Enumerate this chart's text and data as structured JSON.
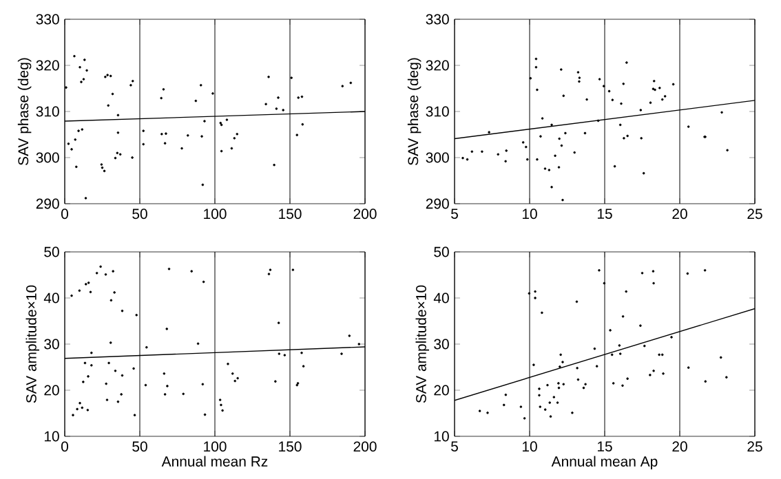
{
  "chart_data": [
    {
      "type": "scatter",
      "ylabel": "SAV phase (deg)",
      "xlim": [
        0,
        200
      ],
      "ylim": [
        290,
        330
      ],
      "xticks": [
        0,
        50,
        100,
        150,
        200
      ],
      "yticks": [
        290,
        300,
        310,
        320,
        330
      ],
      "grid": "x",
      "series": [
        {
          "color": "#000000",
          "marker": "circle",
          "x": [
            0.9,
            2.5,
            4.6,
            6.4,
            7.0,
            7.7,
            9.2,
            10.1,
            11,
            11.6,
            12.6,
            13.2,
            14,
            14.7,
            24.5,
            25,
            26.4,
            27,
            28.5,
            29,
            30.6,
            31.9,
            33.7,
            35,
            35.5,
            35.5,
            37,
            44,
            45.3,
            45,
            52.4,
            52.4,
            64.3,
            65.8,
            64.6,
            67.4,
            66.8,
            78,
            82,
            87.3,
            90.7,
            91.3,
            91.9,
            93.1,
            98.6,
            103.8,
            104.4,
            104.4,
            108,
            111.2,
            113,
            114.8,
            134,
            135.8,
            139.5,
            141,
            142.2,
            145.5,
            151,
            154.7,
            155.6,
            158,
            158.4,
            185,
            190.5
          ],
          "values": [
            315.2,
            303,
            301.8,
            322,
            303.9,
            298,
            305.8,
            319.6,
            316.4,
            306.1,
            317,
            321.2,
            291.2,
            318.9,
            298.5,
            297.8,
            297.1,
            317.5,
            317.9,
            311.3,
            317.7,
            313.8,
            299.9,
            301,
            309.2,
            305.4,
            300.7,
            315.7,
            316.6,
            300,
            305.8,
            302.9,
            312.9,
            314.8,
            305.1,
            305.2,
            303.1,
            302,
            304.8,
            312.3,
            315.7,
            304.6,
            294.1,
            307.9,
            313.9,
            307.5,
            307.1,
            301.4,
            308.2,
            302,
            304.2,
            305.1,
            311.6,
            317.5,
            298.4,
            310.6,
            313,
            310.3,
            317.3,
            304.9,
            313,
            313.2,
            307.2,
            315.5,
            316.2
          ]
        },
        {
          "type": "line",
          "color": "#000000",
          "x": [
            0,
            200
          ],
          "values": [
            307.9,
            310
          ]
        }
      ]
    },
    {
      "type": "scatter",
      "ylabel": "SAV phase (deg)",
      "xlim": [
        5,
        25
      ],
      "ylim": [
        290,
        330
      ],
      "xticks": [
        5,
        10,
        15,
        20,
        25
      ],
      "yticks": [
        290,
        300,
        310,
        320,
        330
      ],
      "grid": "x",
      "series": [
        {
          "color": "#000000",
          "marker": "circle",
          "x": [
            5.55,
            5.85,
            6.16,
            6.83,
            7.3,
            7.9,
            8.45,
            8.4,
            9.57,
            9.76,
            9.85,
            10.06,
            10.43,
            10.43,
            10.5,
            10.5,
            10.73,
            10.85,
            11.03,
            11.3,
            11.47,
            11.47,
            11.7,
            11.95,
            11.98,
            12.1,
            12.13,
            12.2,
            12.26,
            12.38,
            12.99,
            13.23,
            13.3,
            13.32,
            13.69,
            13.81,
            14.66,
            14.94,
            14.57,
            15.3,
            15.52,
            15.67,
            16.04,
            16.1,
            16.25,
            16.28,
            16.46,
            16.52,
            17.4,
            17.44,
            17.6,
            18.05,
            18.23,
            18.29,
            18.35,
            18.66,
            18.84,
            19.02,
            19.57,
            20.58,
            21.65,
            21.7,
            22.8,
            23.17
          ],
          "values": [
            299.9,
            299.6,
            301.3,
            301.3,
            305.5,
            300.7,
            301.5,
            299.2,
            303.3,
            302.3,
            299.6,
            317.2,
            321.4,
            319.6,
            314.7,
            299.6,
            304.6,
            308.5,
            297.6,
            297.3,
            293.6,
            307.1,
            300.4,
            297.9,
            304.1,
            319.1,
            302.6,
            290.8,
            313.4,
            305.3,
            301.1,
            318.5,
            316.5,
            317.3,
            305.3,
            312.6,
            317,
            315.5,
            308,
            314.4,
            312.5,
            298.1,
            307.1,
            311.7,
            316,
            304.2,
            320.6,
            304.7,
            310.3,
            304.2,
            296.6,
            311.9,
            314.9,
            316.6,
            314.7,
            315.1,
            312.6,
            313.3,
            315.9,
            306.7,
            304.5,
            304.5,
            309.8,
            301.6
          ]
        },
        {
          "type": "line",
          "color": "#000000",
          "x": [
            5,
            25
          ],
          "values": [
            304.1,
            312.4
          ]
        }
      ]
    },
    {
      "type": "scatter",
      "xlabel": "Annual mean Rz",
      "ylabel": "SAV amplitude×10",
      "xlim": [
        0,
        200
      ],
      "ylim": [
        10,
        50
      ],
      "xticks": [
        0,
        50,
        100,
        150,
        200
      ],
      "yticks": [
        10,
        20,
        30,
        40,
        50
      ],
      "grid": "x",
      "series": [
        {
          "color": "#000000",
          "marker": "circle",
          "x": [
            4.6,
            5.5,
            8.3,
            9.8,
            10.1,
            11.6,
            12.3,
            13.5,
            14.1,
            15.3,
            15.6,
            15.9,
            17.2,
            17.8,
            17.8,
            21.4,
            23.9,
            27.3,
            27.6,
            28.2,
            29.4,
            30.6,
            30.9,
            32.2,
            33.1,
            33.7,
            35.5,
            37.7,
            38.3,
            38.3,
            45.9,
            46.6,
            47.8,
            54.5,
            53.9,
            66.2,
            66.8,
            68,
            68.3,
            69.5,
            79,
            84.5,
            88.8,
            91.9,
            92.5,
            93.4,
            103.5,
            104.1,
            105.1,
            108.7,
            111.8,
            113.4,
            115.2,
            136,
            136.9,
            140.3,
            142.5,
            142.8,
            146.5,
            152,
            154.7,
            155.3,
            157.8,
            159,
            184.4,
            189.6,
            196
          ],
          "values": [
            40.5,
            14.6,
            15.9,
            41.6,
            17.2,
            16.2,
            21.8,
            25.9,
            43,
            15.7,
            23,
            43.3,
            41.3,
            25.4,
            28.1,
            45.4,
            46.8,
            45.1,
            21.4,
            17.9,
            25.9,
            30.3,
            39.5,
            45.8,
            41.2,
            24.2,
            17.5,
            19.1,
            23.2,
            37.2,
            24.7,
            14.6,
            36.3,
            29.3,
            21.1,
            23.6,
            19.1,
            33.3,
            20.9,
            46.3,
            19.2,
            45.8,
            30.1,
            21.3,
            43.5,
            14.7,
            17.9,
            16.8,
            15.6,
            25.7,
            23.6,
            22,
            22.6,
            45.2,
            46.1,
            21.9,
            34.6,
            27.9,
            27.6,
            46.1,
            21.1,
            21.5,
            28.1,
            25.2,
            27.9,
            31.8,
            30
          ]
        },
        {
          "type": "line",
          "color": "#000000",
          "x": [
            0,
            200
          ],
          "values": [
            26.9,
            29.4
          ]
        }
      ]
    },
    {
      "type": "scatter",
      "xlabel": "Annual mean Ap",
      "ylabel": "SAV amplitude×10",
      "xlim": [
        5,
        25
      ],
      "ylim": [
        10,
        50
      ],
      "xticks": [
        5,
        10,
        15,
        20,
        25
      ],
      "yticks": [
        10,
        20,
        30,
        40,
        50
      ],
      "grid": "x",
      "series": [
        {
          "color": "#000000",
          "marker": "circle",
          "x": [
            6.68,
            7.2,
            8.41,
            8.29,
            9.42,
            9.66,
            9.97,
            10.37,
            10.37,
            10.27,
            10.64,
            10.64,
            10.7,
            10.82,
            11.04,
            11.19,
            11.34,
            11.4,
            11.62,
            11.86,
            11.92,
            11.95,
            12.01,
            12.07,
            12.26,
            12.2,
            12.84,
            13.14,
            13.17,
            13.23,
            13.6,
            13.72,
            14.33,
            14.48,
            14.63,
            14.97,
            15.37,
            15.49,
            15.58,
            15.98,
            16.04,
            16.19,
            16.22,
            16.43,
            16.52,
            17.38,
            17.5,
            17.65,
            18.02,
            18.23,
            18.26,
            18.26,
            18.63,
            18.84,
            18.9,
            19.45,
            20.52,
            20.58,
            21.68,
            21.71,
            22.74,
            23.11
          ],
          "values": [
            15.5,
            15.1,
            19,
            16.8,
            16.4,
            13.9,
            41,
            41.4,
            40,
            25.5,
            20.3,
            18.9,
            16.4,
            36.8,
            15.8,
            21.1,
            17.3,
            14.3,
            18.5,
            17.3,
            21.5,
            20.5,
            25.1,
            27.7,
            21.3,
            26.1,
            15.1,
            39.2,
            24.8,
            22.3,
            20.5,
            21.3,
            29,
            25.2,
            46,
            43.2,
            33,
            27.7,
            21.5,
            29.7,
            27.9,
            21,
            36,
            41.4,
            22.5,
            34,
            45.4,
            29.6,
            23.3,
            45.8,
            43.2,
            24.2,
            27.7,
            27.7,
            23.6,
            31.5,
            45.3,
            24.9,
            46,
            21.9,
            27.1,
            22.8
          ]
        },
        {
          "type": "line",
          "color": "#000000",
          "x": [
            5,
            25
          ],
          "values": [
            17.8,
            37.7
          ]
        }
      ]
    }
  ]
}
